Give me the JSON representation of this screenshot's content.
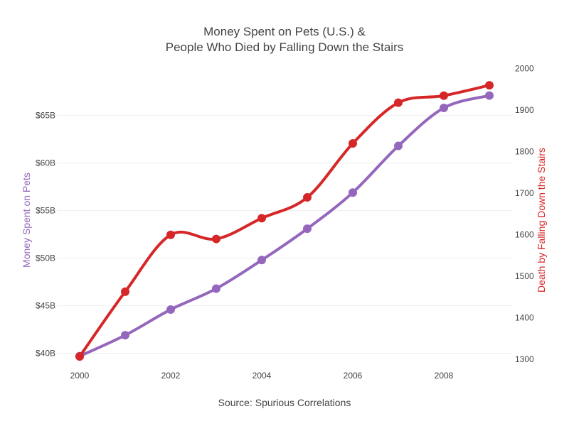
{
  "chart_data": {
    "type": "line",
    "title": [
      "Money Spent on Pets (U.S.) &",
      "People Who Died by Falling Down the Stairs"
    ],
    "xlabel": "Source: Spurious Correlations",
    "x": [
      2000,
      2001,
      2002,
      2003,
      2004,
      2005,
      2006,
      2007,
      2008,
      2009
    ],
    "x_ticks": [
      2000,
      2002,
      2004,
      2006,
      2008
    ],
    "xlim": [
      1999.5,
      2009.5
    ],
    "series": [
      {
        "name": "Money Spent on Pets",
        "axis": "left",
        "color": "#9467bd",
        "values": [
          39.7,
          41.9,
          44.6,
          46.8,
          49.8,
          53.1,
          56.9,
          61.8,
          65.8,
          67.1
        ]
      },
      {
        "name": "Death by Falling Down the Stairs",
        "axis": "right",
        "color": "#d62728",
        "values": [
          1307,
          1463,
          1600,
          1590,
          1640,
          1690,
          1820,
          1918,
          1935,
          1960
        ]
      }
    ],
    "yaxis_left": {
      "title": "Money Spent on Pets",
      "ticks": [
        40,
        45,
        50,
        55,
        60,
        65
      ],
      "tick_labels": [
        "$40B",
        "$45B",
        "$50B",
        "$55B",
        "$60B",
        "$65B"
      ],
      "range": [
        38.7,
        70.8
      ]
    },
    "yaxis_right": {
      "title": "Death by Falling Down the Stairs",
      "ticks": [
        1300,
        1400,
        1500,
        1600,
        1700,
        1800,
        1900,
        2000
      ],
      "tick_labels": [
        "1300",
        "1400",
        "1500",
        "1600",
        "1700",
        "1800",
        "1900",
        "2000"
      ],
      "range": [
        1285,
        2020
      ]
    },
    "grid": true,
    "legend": "none"
  }
}
